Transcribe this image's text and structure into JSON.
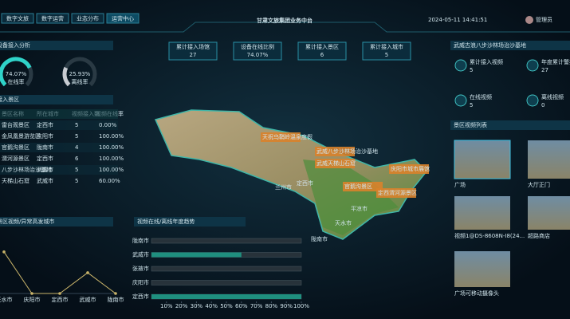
{
  "nav": [
    "数字文旅",
    "数字运营",
    "业态分布",
    "运营中心"
  ],
  "title": "甘肃文旅集团业务中台",
  "datetime": "2024-05-11 14:41:51",
  "user": "管理员",
  "stats": [
    {
      "label": "累计接入场馆",
      "value": "27"
    },
    {
      "label": "设备在线比例",
      "value": "74.07%"
    },
    {
      "label": "累计接入景区",
      "value": "6"
    },
    {
      "label": "累计接入城市",
      "value": "5"
    }
  ],
  "device_panel": {
    "title": "设备接入分析",
    "gauges": [
      {
        "value": 74.07,
        "value_label": "74.07%",
        "label": "在线率",
        "color": "#2fd3c9"
      },
      {
        "value": 25.93,
        "value_label": "25.93%",
        "label": "离线率",
        "color": "#c8ccd2"
      }
    ]
  },
  "scenic_panel": {
    "title": "接入景区",
    "columns": [
      "景区名称",
      "所在城市",
      "视频接入数",
      "视频在线率"
    ],
    "rows": [
      [
        "雷台观景区",
        "定西市",
        "5",
        "0.00%"
      ],
      [
        "金凤凰景游览区",
        "庆阳市",
        "5",
        "100.00%"
      ],
      [
        "官鹅沟景区",
        "陇南市",
        "4",
        "100.00%"
      ],
      [
        "渭河源景区",
        "定西市",
        "6",
        "100.00%"
      ],
      [
        "八步沙林场治沙基地",
        "武威市",
        "5",
        "100.00%"
      ],
      [
        "天梯山石窟",
        "武威市",
        "5",
        "60.00%"
      ]
    ]
  },
  "line_chart": {
    "title": "景区视频/异常高发城市",
    "categories": [
      "天水市",
      "庆阳市",
      "定西市",
      "武威市",
      "陇南市"
    ],
    "values": [
      2,
      0,
      0,
      1,
      0
    ],
    "ylim": [
      0,
      2.3
    ],
    "color": "#c9b46a"
  },
  "bar_chart": {
    "title": "视频在线/离线年度趋势",
    "categories": [
      "陇南市",
      "武威市",
      "张掖市",
      "庆阳市",
      "定西市"
    ],
    "values": [
      0,
      60,
      0,
      0,
      100
    ],
    "xlim": [
      0,
      100
    ],
    "color": "#1f8f7f",
    "xticks": [
      {
        "value": 10,
        "label": "10%"
      },
      {
        "value": 20,
        "label": "20%"
      },
      {
        "value": 30,
        "label": "30%"
      },
      {
        "value": 40,
        "label": "40%"
      },
      {
        "value": 50,
        "label": "50%"
      },
      {
        "value": 60,
        "label": "60%"
      },
      {
        "value": 70,
        "label": "70%"
      },
      {
        "value": 80,
        "label": "80%"
      },
      {
        "value": 90,
        "label": "90%"
      },
      {
        "value": 100,
        "label": "100%"
      }
    ]
  },
  "map": {
    "labels": [
      "天祝乌鞘岭温泉度假",
      "武威八步沙林场治沙基地",
      "武威天梯山石窟",
      "庆阳市城市展馆",
      "官鹅沟景区",
      "定西渭河源景区"
    ],
    "places": [
      "兰州市",
      "定西市",
      "平凉市",
      "天水市",
      "陇南市"
    ]
  },
  "site_panel": {
    "title": "武威古浪八步沙林场治沙基地",
    "stats": [
      {
        "label": "累计接入视频",
        "value": "5"
      },
      {
        "label": "年度累计警报",
        "value": "27"
      },
      {
        "label": "在线视频",
        "value": "5"
      },
      {
        "label": "离线视频",
        "value": "0"
      }
    ]
  },
  "video_panel": {
    "title": "景区视频列表",
    "videos": [
      "广场",
      "大厅正门",
      "视频1@DS-8608N-I8(24...",
      "超路商店",
      "广场可移动摄像头"
    ]
  }
}
